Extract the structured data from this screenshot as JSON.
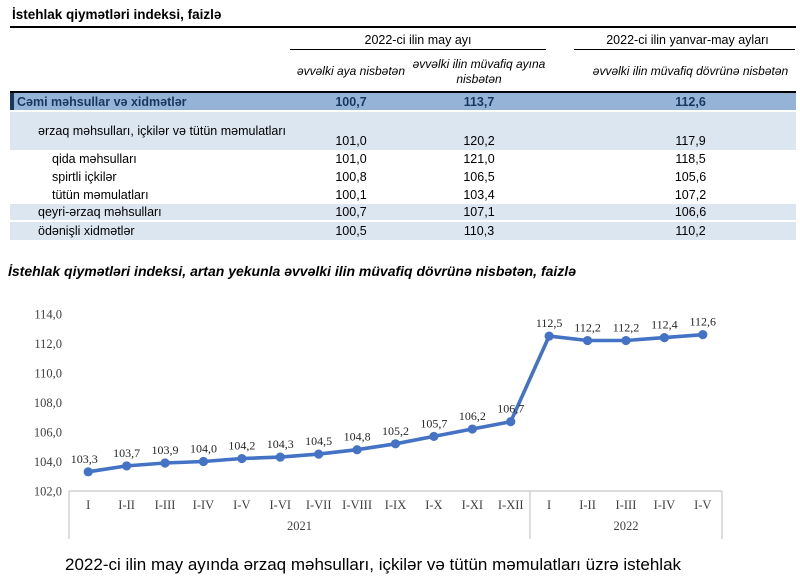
{
  "page_title": "İstehlak qiymətləri indeksi, faizlə",
  "table": {
    "group_headers": {
      "may": "2022-ci ilin may ayı",
      "jan_may": "2022-ci ilin yanvar-may ayları"
    },
    "column_headers": {
      "prev_month": "əvvəlki aya nisbətən",
      "same_month_prev_year": "əvvəlki ilin müvafiq ayına nisbətən",
      "same_period_prev_year": "əvvəlki ilin müvafiq dövrünə nisbətən"
    },
    "rows": [
      {
        "label": "Cəmi məhsullar və xidmətlər",
        "values": [
          "100,7",
          "113,7",
          "112,6"
        ]
      },
      {
        "label": "ərzaq məhsulları, içkilər və tütün məmulatları",
        "values": [
          "101,0",
          "120,2",
          "117,9"
        ]
      },
      {
        "label": "qida məhsulları",
        "values": [
          "101,0",
          "121,0",
          "118,5"
        ]
      },
      {
        "label": "spirtli içkilər",
        "values": [
          "100,8",
          "106,5",
          "105,6"
        ]
      },
      {
        "label": "tütün məmulatları",
        "values": [
          "100,1",
          "103,4",
          "107,2"
        ]
      },
      {
        "label": "qeyri-ərzaq məhsulları",
        "values": [
          "100,7",
          "107,1",
          "106,6"
        ]
      },
      {
        "label": "ödənişli xidmətlər",
        "values": [
          "100,5",
          "110,3",
          "110,2"
        ]
      }
    ]
  },
  "chart_title": "İstehlak qiymətləri indeksi, artan yekunla əvvəlki ilin müvafiq dövrünə nisbətən, faizlə",
  "chart_data": {
    "type": "line",
    "title": "İstehlak qiymətləri indeksi, artan yekunla əvvəlki ilin müvafiq dövrünə nisbətən, faizlə",
    "x": [
      "I",
      "I-II",
      "I-III",
      "I-IV",
      "I-V",
      "I-VI",
      "I-VII",
      "I-VIII",
      "I-IX",
      "I-X",
      "I-XI",
      "I-XII",
      "I",
      "I-II",
      "I-III",
      "I-IV",
      "I-V"
    ],
    "x_groups": [
      {
        "label": "2021",
        "count": 12
      },
      {
        "label": "2022",
        "count": 5
      }
    ],
    "values": [
      103.3,
      103.7,
      103.9,
      104.0,
      104.2,
      104.3,
      104.5,
      104.8,
      105.2,
      105.7,
      106.2,
      106.7,
      112.5,
      112.2,
      112.2,
      112.4,
      112.6
    ],
    "ylim": [
      102,
      114
    ],
    "ytick_step": 2,
    "decimal_separator": ",",
    "line_color": "#4472C4",
    "grid": false,
    "legend": "none"
  },
  "footer_text": "2022-ci ilin may ayında ərzaq məhsulları, içkilər və tütün məmulatları üzrə istehlak",
  "colors": {
    "total_row_bg": "#95B3D7",
    "alt_row_bg": "#DCE6F1",
    "total_row_text": "#17375E",
    "chart_line": "#4472C4"
  }
}
